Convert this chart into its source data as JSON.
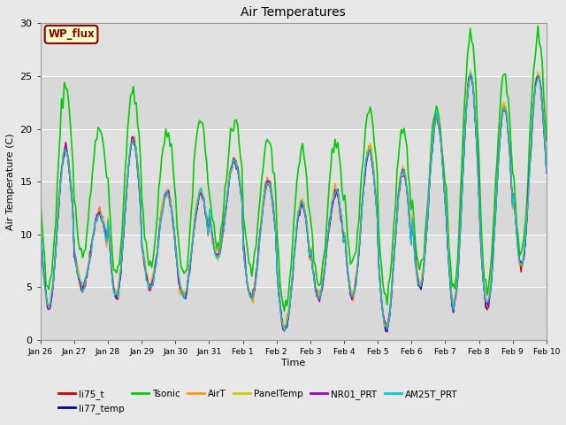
{
  "title": "Air Temperatures",
  "xlabel": "Time",
  "ylabel": "Air Temperature (C)",
  "ylim": [
    0,
    30
  ],
  "background_color": "#e8e8e8",
  "plot_bg_color": "#e8e8e8",
  "legend_box_label": "WP_flux",
  "legend_box_color": "#ffffcc",
  "legend_box_edge_color": "#8b0000",
  "series": [
    {
      "name": "li75_t",
      "color": "#cc0000",
      "lw": 1.0
    },
    {
      "name": "li77_temp",
      "color": "#000099",
      "lw": 1.0
    },
    {
      "name": "Tsonic",
      "color": "#00cc00",
      "lw": 1.2
    },
    {
      "name": "AirT",
      "color": "#ff9900",
      "lw": 1.0
    },
    {
      "name": "PanelTemp",
      "color": "#cccc00",
      "lw": 1.0
    },
    {
      "name": "NR01_PRT",
      "color": "#9900cc",
      "lw": 1.0
    },
    {
      "name": "AM25T_PRT",
      "color": "#00cccc",
      "lw": 1.0
    }
  ],
  "tick_dates": [
    "Jan 26",
    "Jan 27",
    "Jan 28",
    "Jan 29",
    "Jan 30",
    "Jan 31",
    "Feb 1",
    "Feb 2",
    "Feb 3",
    "Feb 4",
    "Feb 5",
    "Feb 6",
    "Feb 7",
    "Feb 8",
    "Feb 9",
    "Feb 10"
  ],
  "yticks": [
    0,
    5,
    10,
    15,
    20,
    25,
    30
  ],
  "seed": 42
}
